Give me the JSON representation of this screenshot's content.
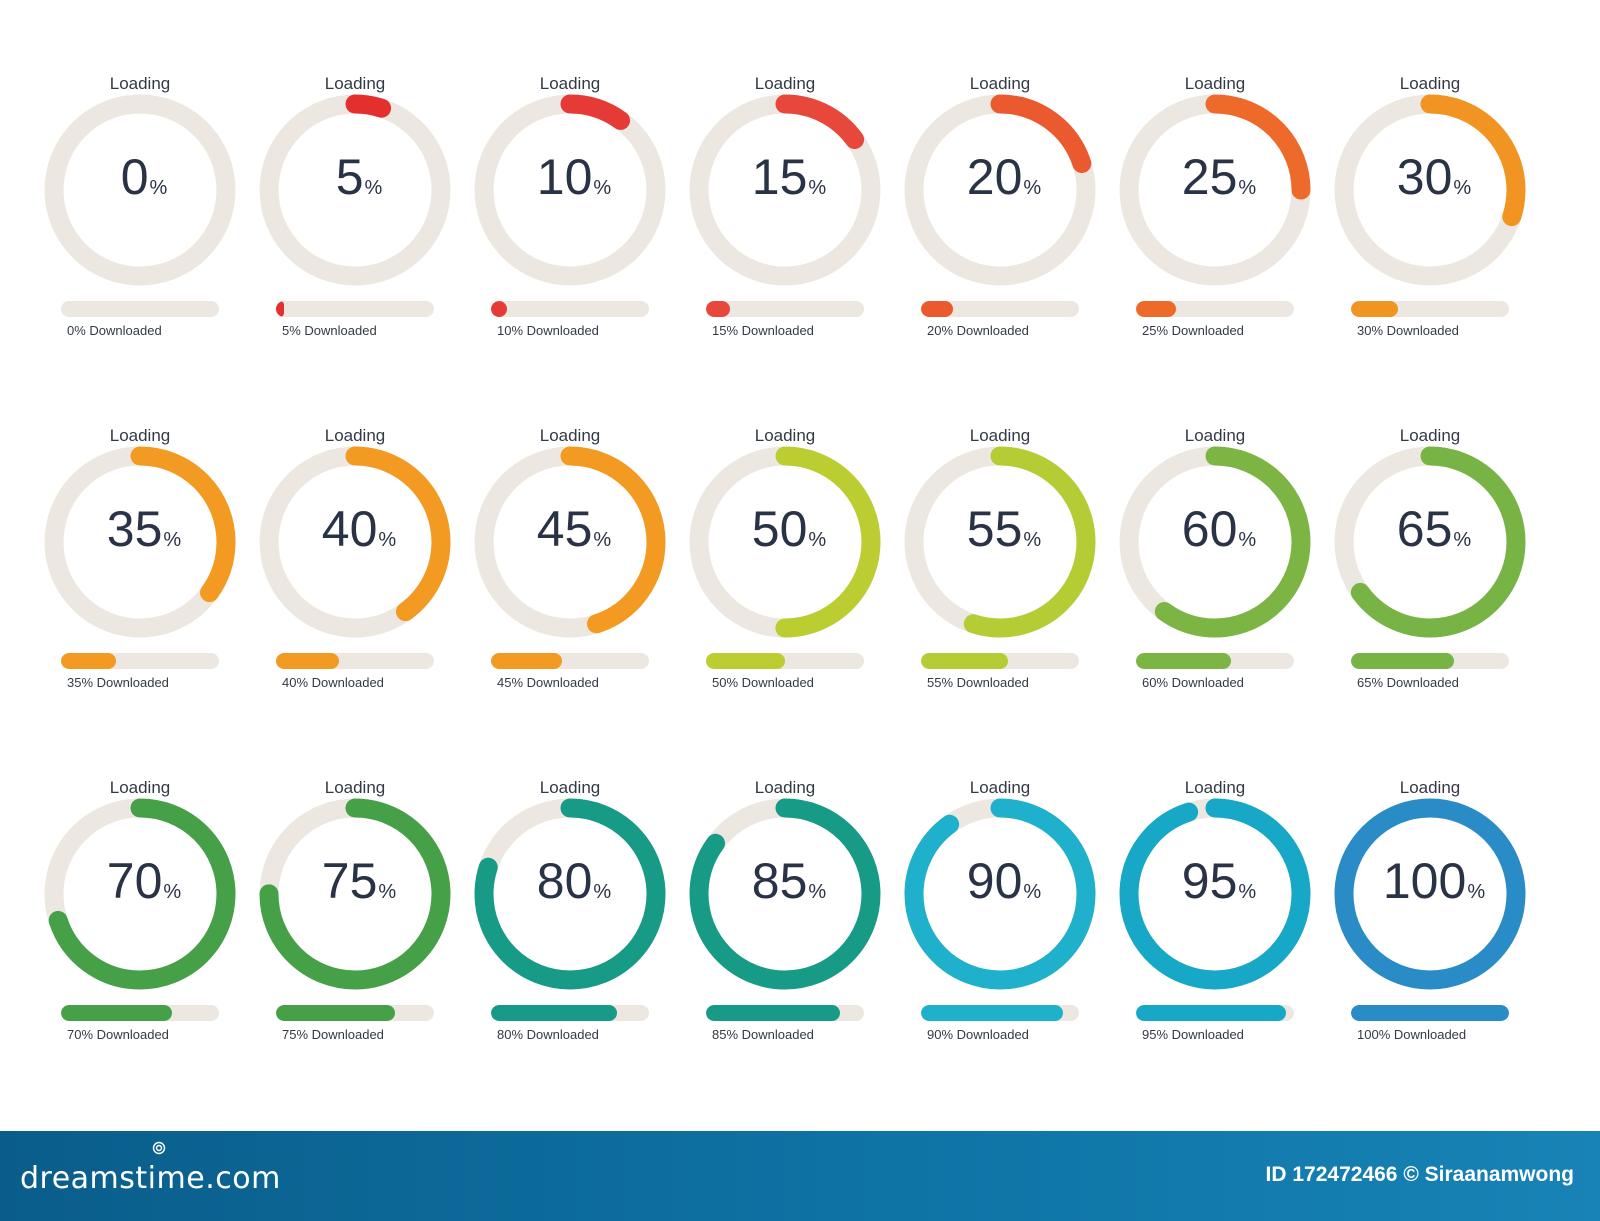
{
  "indicators": [
    {
      "loading_label": "Loading",
      "value": 0,
      "number": "0",
      "percent_sign": "%",
      "caption": "0% Downloaded",
      "color": "#e8e4de"
    },
    {
      "loading_label": "Loading",
      "value": 5,
      "number": "5",
      "percent_sign": "%",
      "caption": "5% Downloaded",
      "color": "#e42f2f"
    },
    {
      "loading_label": "Loading",
      "value": 10,
      "number": "10",
      "percent_sign": "%",
      "caption": "10% Downloaded",
      "color": "#e53a36"
    },
    {
      "loading_label": "Loading",
      "value": 15,
      "number": "15",
      "percent_sign": "%",
      "caption": "15% Downloaded",
      "color": "#e8473c"
    },
    {
      "loading_label": "Loading",
      "value": 20,
      "number": "20",
      "percent_sign": "%",
      "caption": "20% Downloaded",
      "color": "#eb5a2e"
    },
    {
      "loading_label": "Loading",
      "value": 25,
      "number": "25",
      "percent_sign": "%",
      "caption": "25% Downloaded",
      "color": "#ee6a2a"
    },
    {
      "loading_label": "Loading",
      "value": 30,
      "number": "30",
      "percent_sign": "%",
      "caption": "30% Downloaded",
      "color": "#f29422"
    },
    {
      "loading_label": "Loading",
      "value": 35,
      "number": "35",
      "percent_sign": "%",
      "caption": "35% Downloaded",
      "color": "#f39a22"
    },
    {
      "loading_label": "Loading",
      "value": 40,
      "number": "40",
      "percent_sign": "%",
      "caption": "40% Downloaded",
      "color": "#f39a22"
    },
    {
      "loading_label": "Loading",
      "value": 45,
      "number": "45",
      "percent_sign": "%",
      "caption": "45% Downloaded",
      "color": "#f39a22"
    },
    {
      "loading_label": "Loading",
      "value": 50,
      "number": "50",
      "percent_sign": "%",
      "caption": "50% Downloaded",
      "color": "#bccd32"
    },
    {
      "loading_label": "Loading",
      "value": 55,
      "number": "55",
      "percent_sign": "%",
      "caption": "55% Downloaded",
      "color": "#b6cc34"
    },
    {
      "loading_label": "Loading",
      "value": 60,
      "number": "60",
      "percent_sign": "%",
      "caption": "60% Downloaded",
      "color": "#7db544"
    },
    {
      "loading_label": "Loading",
      "value": 65,
      "number": "65",
      "percent_sign": "%",
      "caption": "65% Downloaded",
      "color": "#77b445"
    },
    {
      "loading_label": "Loading",
      "value": 70,
      "number": "70",
      "percent_sign": "%",
      "caption": "70% Downloaded",
      "color": "#45a047"
    },
    {
      "loading_label": "Loading",
      "value": 75,
      "number": "75",
      "percent_sign": "%",
      "caption": "75% Downloaded",
      "color": "#45a047"
    },
    {
      "loading_label": "Loading",
      "value": 80,
      "number": "80",
      "percent_sign": "%",
      "caption": "80% Downloaded",
      "color": "#179a86"
    },
    {
      "loading_label": "Loading",
      "value": 85,
      "number": "85",
      "percent_sign": "%",
      "caption": "85% Downloaded",
      "color": "#179a86"
    },
    {
      "loading_label": "Loading",
      "value": 90,
      "number": "90",
      "percent_sign": "%",
      "caption": "90% Downloaded",
      "color": "#1fb0cc"
    },
    {
      "loading_label": "Loading",
      "value": 95,
      "number": "95",
      "percent_sign": "%",
      "caption": "95% Downloaded",
      "color": "#17a8c8"
    },
    {
      "loading_label": "Loading",
      "value": 100,
      "number": "100",
      "percent_sign": "%",
      "caption": "100% Downloaded",
      "color": "#2a8cc6"
    }
  ],
  "track_color": "#ece8e1",
  "footer": {
    "brand": "dreamstime.com",
    "credit": "ID 172472466 © Siraanamwong"
  }
}
